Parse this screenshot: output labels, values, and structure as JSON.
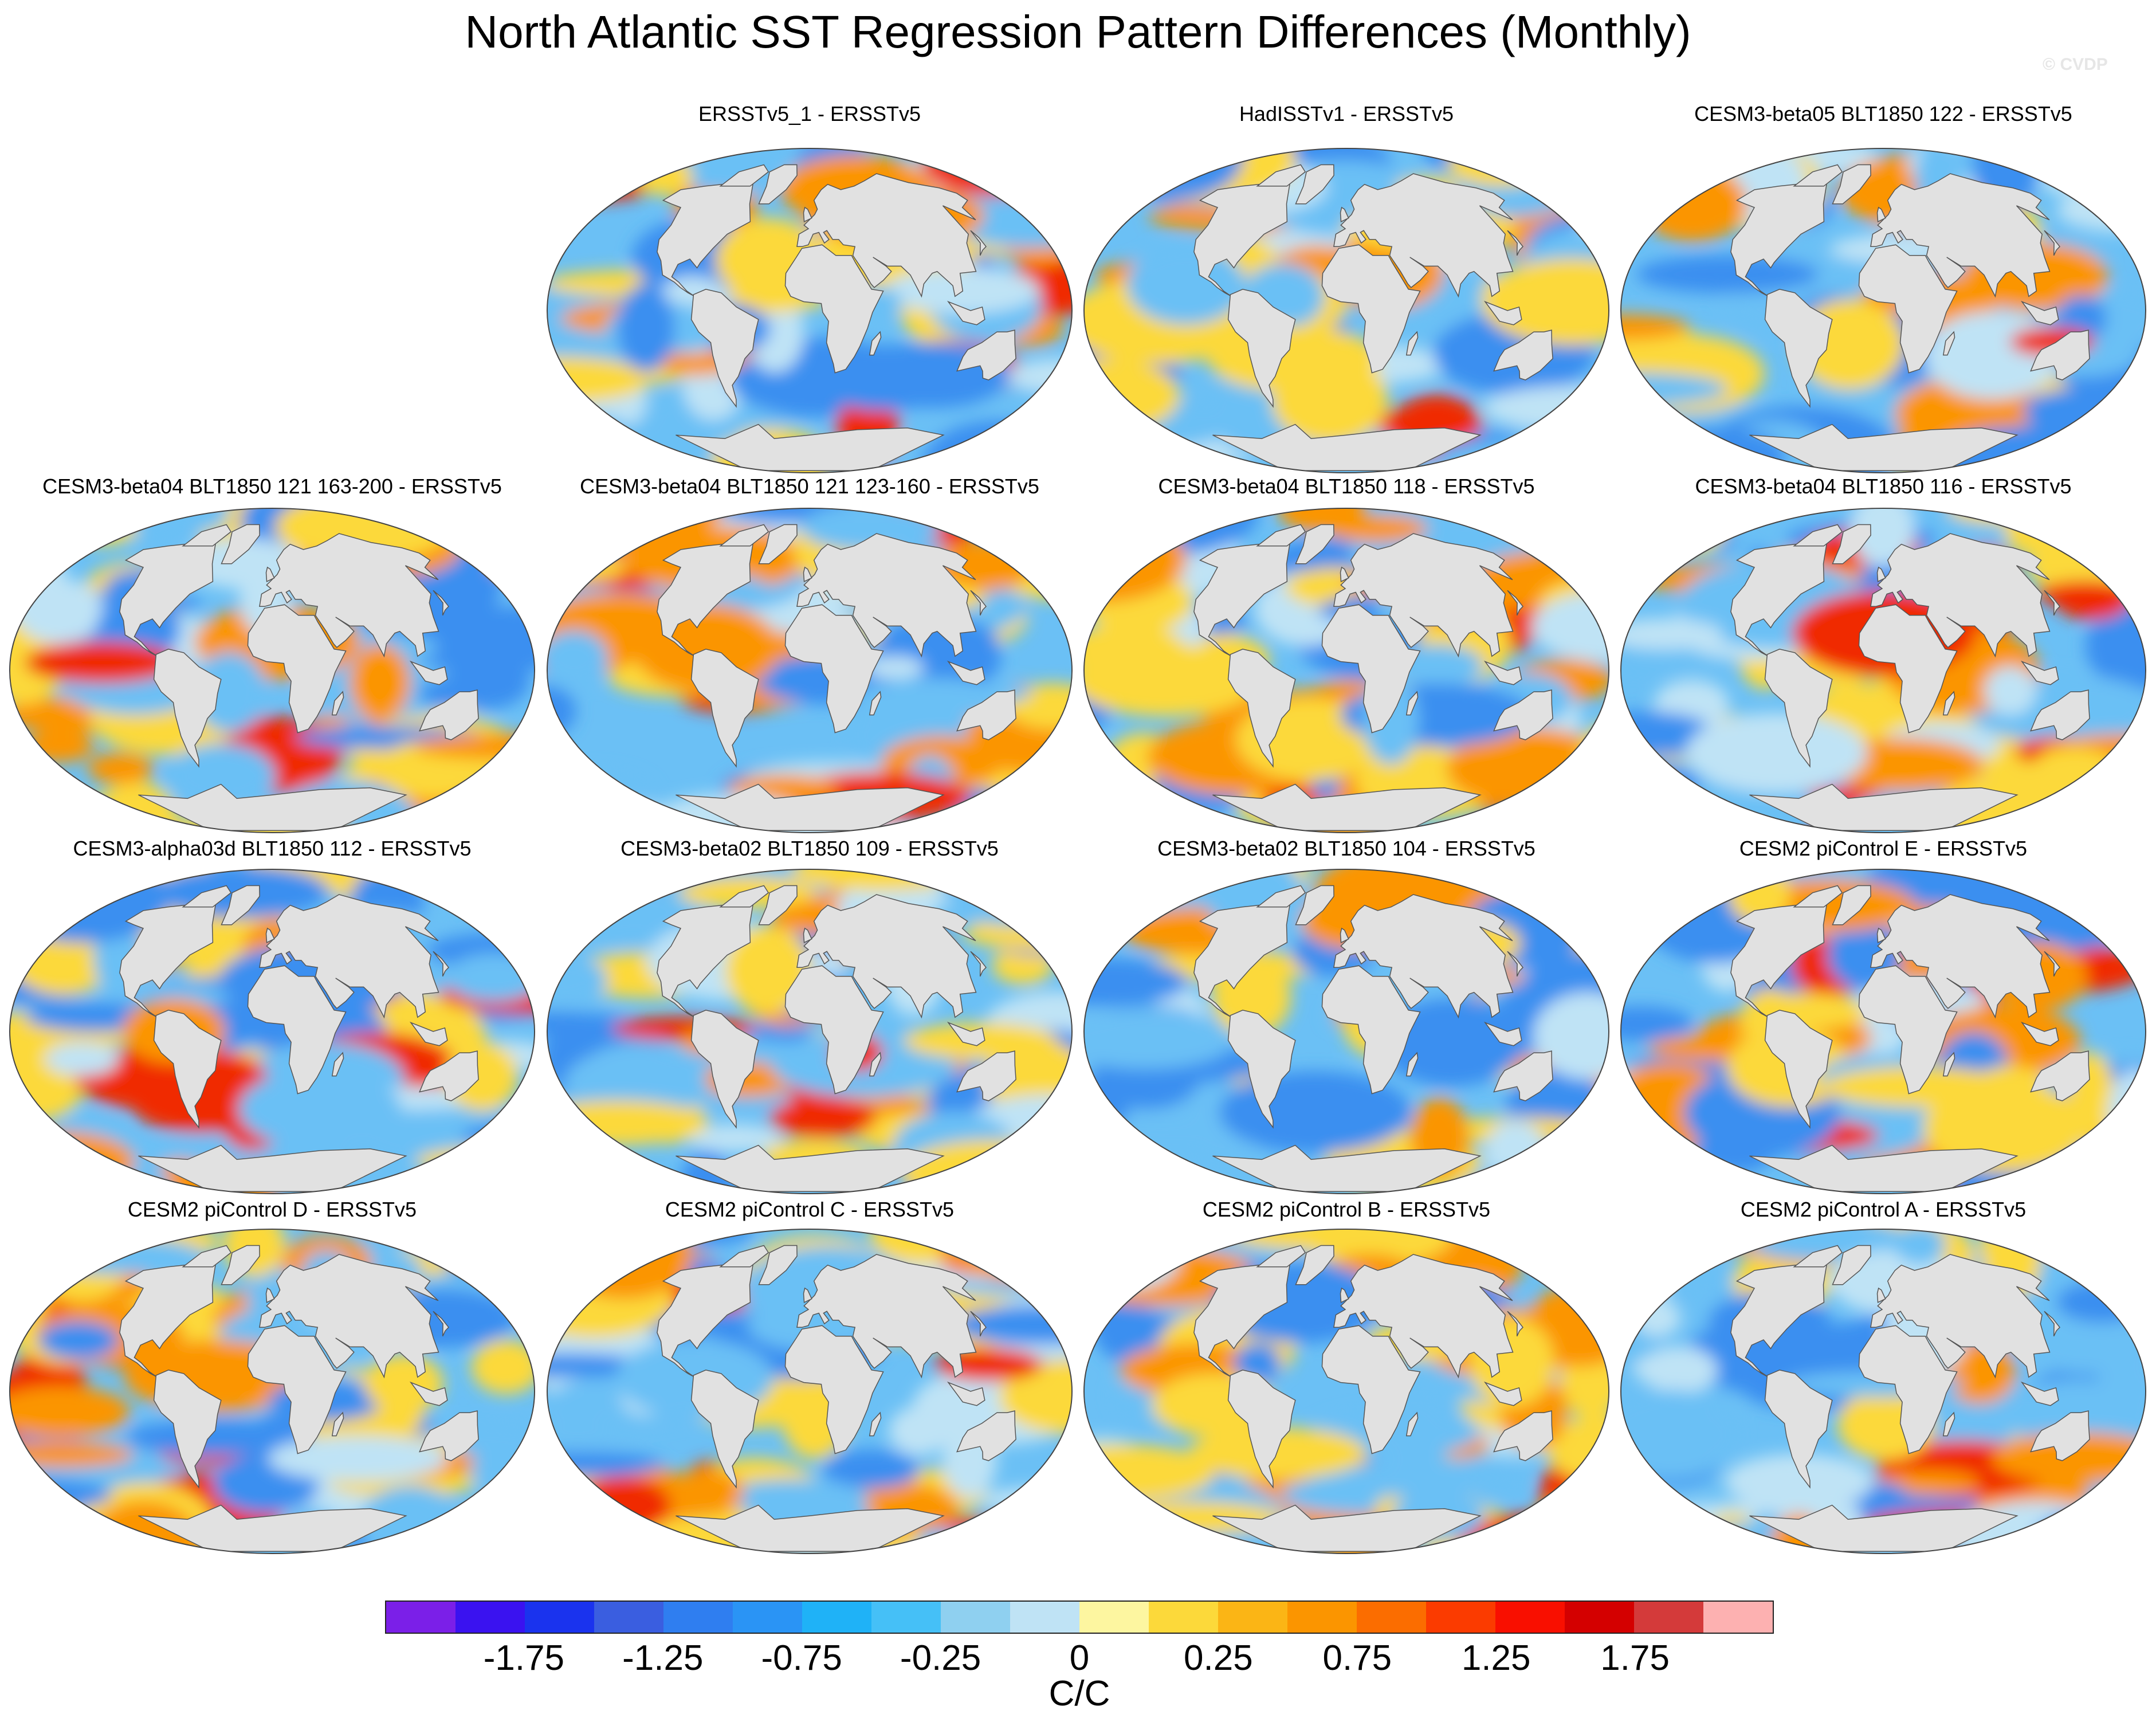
{
  "title": "North Atlantic SST Regression Pattern Differences (Monthly)",
  "watermark": "© CVDP",
  "panels": [
    {
      "id": "p1",
      "label": "ERSSTv5_1 - ERSSTv5"
    },
    {
      "id": "p2",
      "label": "HadISSTv1 - ERSSTv5"
    },
    {
      "id": "p3",
      "label": "CESM3-beta05 BLT1850 122 - ERSSTv5"
    },
    {
      "id": "p4",
      "label": "CESM3-beta04 BLT1850 121 163-200 - ERSSTv5"
    },
    {
      "id": "p5",
      "label": "CESM3-beta04 BLT1850 121 123-160 - ERSSTv5"
    },
    {
      "id": "p6",
      "label": "CESM3-beta04 BLT1850 118 - ERSSTv5"
    },
    {
      "id": "p7",
      "label": "CESM3-beta04 BLT1850 116 - ERSSTv5"
    },
    {
      "id": "p8",
      "label": "CESM3-alpha03d BLT1850 112 - ERSSTv5"
    },
    {
      "id": "p9",
      "label": "CESM3-beta02 BLT1850 109 - ERSSTv5"
    },
    {
      "id": "p10",
      "label": "CESM3-beta02 BLT1850 104 - ERSSTv5"
    },
    {
      "id": "p11",
      "label": "CESM2 piControl E - ERSSTv5"
    },
    {
      "id": "p12",
      "label": "CESM2 piControl D - ERSSTv5"
    },
    {
      "id": "p13",
      "label": "CESM2 piControl C - ERSSTv5"
    },
    {
      "id": "p14",
      "label": "CESM2 piControl B - ERSSTv5"
    },
    {
      "id": "p15",
      "label": "CESM2 piControl A - ERSSTv5"
    }
  ],
  "colorbar": {
    "units": "C/C",
    "labels": [
      "-1.75",
      "-1.25",
      "-0.75",
      "-0.25",
      "0",
      "0.25",
      "0.75",
      "1.25",
      "1.75"
    ],
    "colors": [
      "#7b1fe8",
      "#3a12f0",
      "#1a33ee",
      "#3a5ee0",
      "#2f7ef0",
      "#2a94f5",
      "#1fb2f7",
      "#45c0f7",
      "#8fd0f0",
      "#bfe3f5",
      "#fdf6a0",
      "#fcd93a",
      "#fbb515",
      "#fb9500",
      "#fb6d00",
      "#fb3b00",
      "#f90f00",
      "#d40000",
      "#d43a3a",
      "#fdb1b1"
    ]
  },
  "land_color": "#e1e1e1",
  "ocean_palette": {
    "cold": "#3a8ff0",
    "cool": "#6bc0f5",
    "neutral": "#bfe3f5",
    "warm": "#fcd93a",
    "hot": "#fb9500",
    "very_hot": "#f02a00"
  }
}
